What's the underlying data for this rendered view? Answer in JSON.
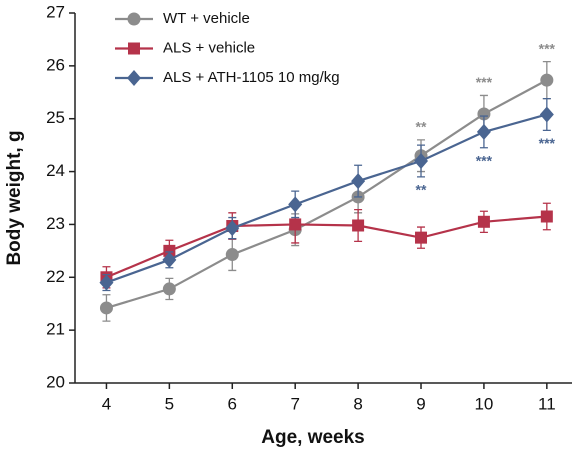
{
  "chart_data": {
    "type": "line",
    "x_label": "Age, weeks",
    "y_label": "Body weight, g",
    "x": [
      4,
      5,
      6,
      7,
      8,
      9,
      10,
      11
    ],
    "xlim": [
      3.5,
      11.4
    ],
    "xticks": [
      4,
      5,
      6,
      7,
      8,
      9,
      10,
      11
    ],
    "ylim": [
      20,
      27
    ],
    "yticks": [
      20,
      21,
      22,
      23,
      24,
      25,
      26,
      27
    ],
    "legend": "top-left",
    "series": [
      {
        "name": "WT + vehicle",
        "color": "#8c8c8c",
        "marker": "circle",
        "values": [
          21.42,
          21.78,
          22.43,
          22.9,
          23.52,
          24.3,
          25.09,
          25.73
        ],
        "errors": [
          0.25,
          0.2,
          0.3,
          0.3,
          0.3,
          0.3,
          0.35,
          0.35
        ],
        "significance": [
          null,
          null,
          null,
          null,
          null,
          "**",
          "***",
          "***"
        ]
      },
      {
        "name": "ALS + vehicle",
        "color": "#b5334a",
        "marker": "square",
        "values": [
          22.0,
          22.5,
          22.97,
          23.0,
          22.98,
          22.75,
          23.05,
          23.15
        ],
        "errors": [
          0.2,
          0.2,
          0.25,
          0.35,
          0.3,
          0.2,
          0.2,
          0.25
        ]
      },
      {
        "name": "ALS + ATH-1105 10 mg/kg",
        "color": "#4a6591",
        "marker": "diamond",
        "values": [
          21.9,
          22.33,
          22.93,
          23.38,
          23.82,
          24.2,
          24.75,
          25.08
        ],
        "errors": [
          0.15,
          0.15,
          0.2,
          0.25,
          0.3,
          0.3,
          0.3,
          0.3
        ],
        "significance": [
          null,
          null,
          null,
          null,
          null,
          "**",
          "***",
          "***"
        ]
      }
    ]
  }
}
